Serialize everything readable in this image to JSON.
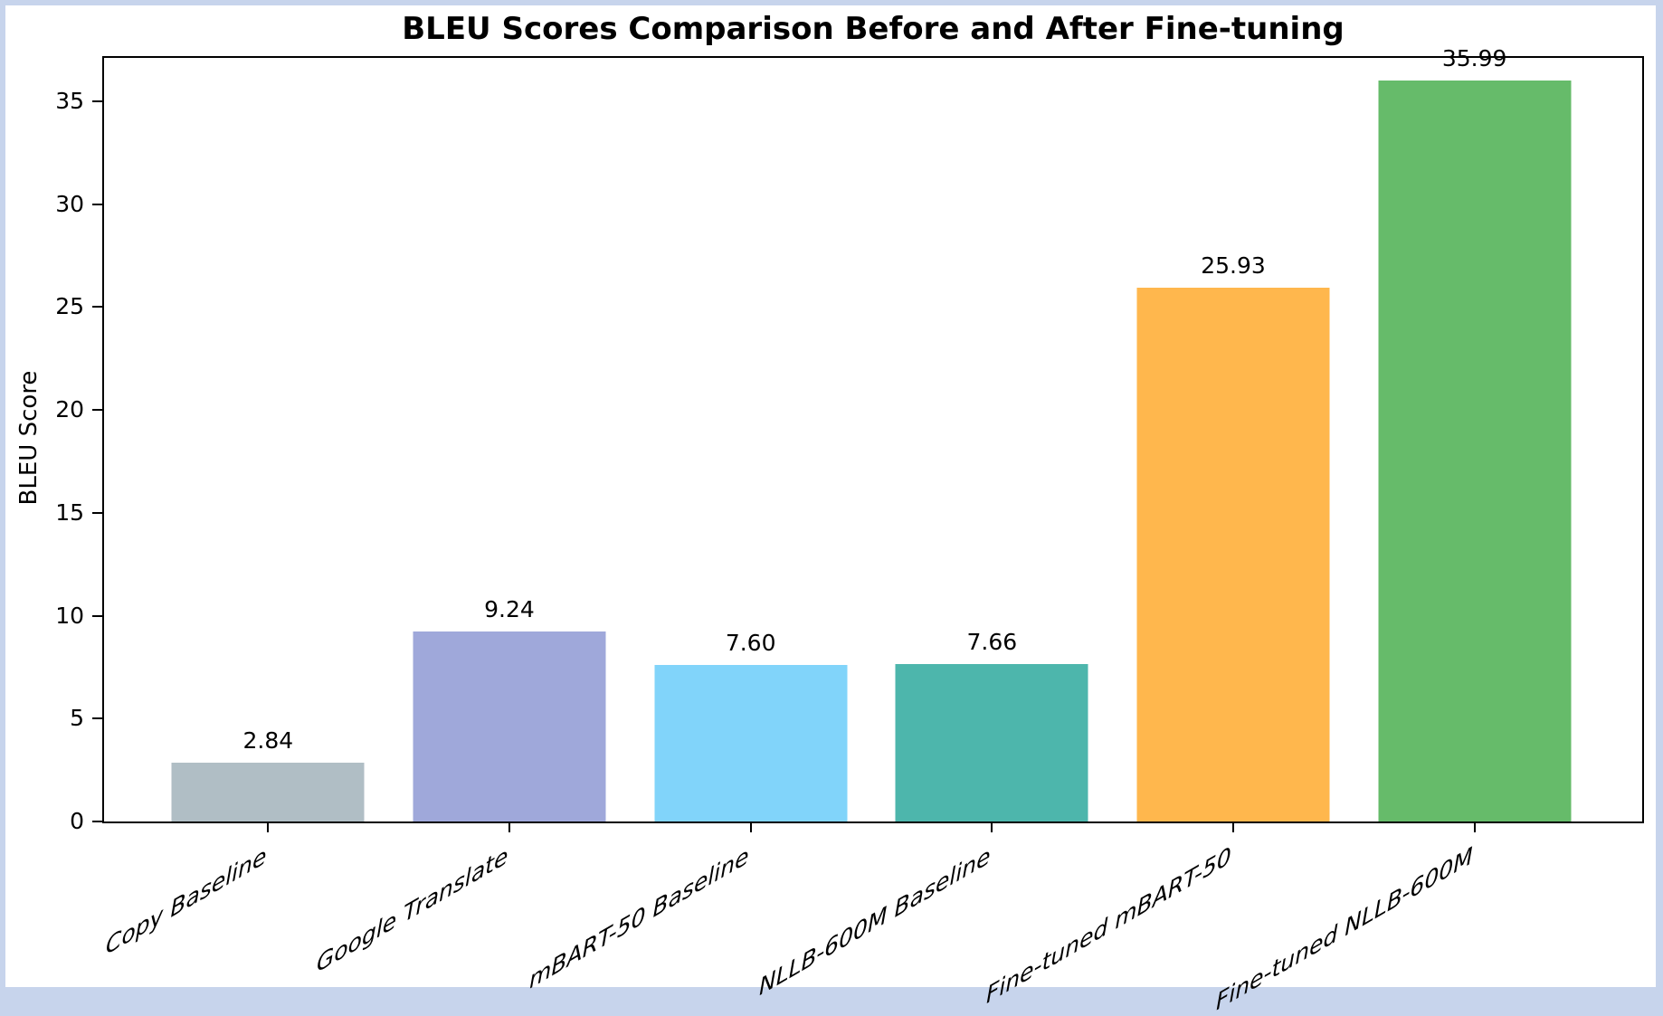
{
  "page": {
    "background_color": "#c7d4ec",
    "figure_background_color": "#ffffff",
    "axis_color": "#000000",
    "text_color": "#000000"
  },
  "chart_data": {
    "type": "bar",
    "title": "BLEU Scores Comparison Before and After Fine-tuning",
    "xlabel": "",
    "ylabel": "BLEU Score",
    "categories": [
      "Copy Baseline",
      "Google Translate",
      "mBART-50 Baseline",
      "NLLB-600M Baseline",
      "Fine-tuned mBART-50",
      "Fine-tuned NLLB-600M"
    ],
    "values": [
      2.84,
      9.24,
      7.6,
      7.66,
      25.93,
      35.99
    ],
    "value_labels": [
      "2.84",
      "9.24",
      "7.60",
      "7.66",
      "25.93",
      "35.99"
    ],
    "bar_colors": [
      "#b0bec5",
      "#9fa8da",
      "#81d4fa",
      "#4db6ac",
      "#ffb74d",
      "#66bb6a"
    ],
    "yticks": [
      0,
      5,
      10,
      15,
      20,
      25,
      30,
      35
    ],
    "ylim": [
      0,
      37.1
    ],
    "grid": false,
    "legend_position": "none",
    "x_tick_rotation_deg": 30
  }
}
